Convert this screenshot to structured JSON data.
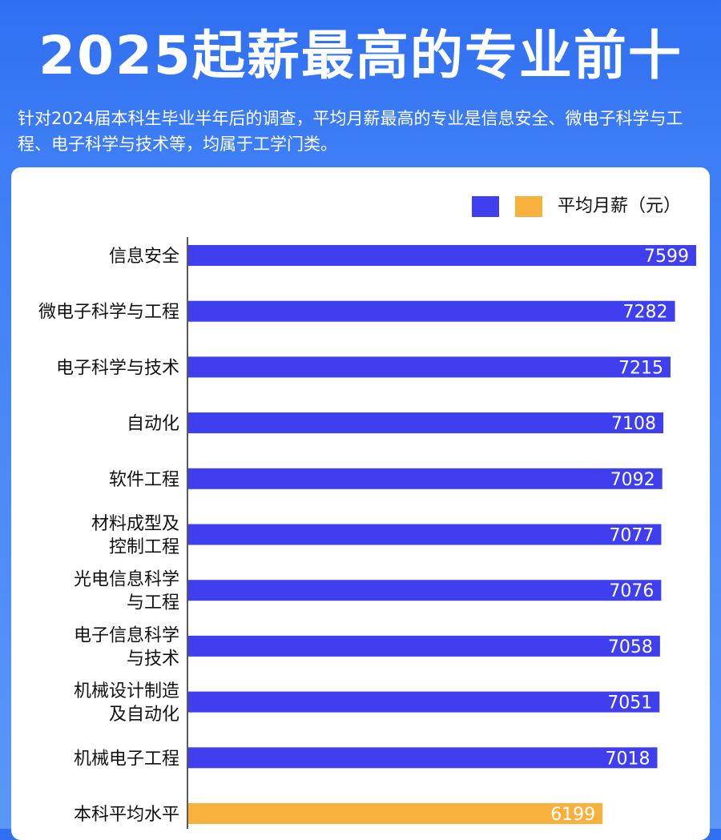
{
  "title": "2025起薪最高的专业前十",
  "subtitle": "针对2024届本科生毕业半年后的调查，平均月薪最高的专业是信息安全、微电子科学与工程、电子科学与技术等，均属于工学门类。",
  "colors": {
    "primary_bar": "#3f3fef",
    "average_bar": "#f8b13d",
    "background": "#3d7df5"
  },
  "chart_data": {
    "type": "bar",
    "orientation": "horizontal",
    "legend": {
      "label": "平均月薪（元）",
      "placement": "top-right"
    },
    "categories": [
      [
        "信息安全"
      ],
      [
        "微电子科学与工程"
      ],
      [
        "电子科学与技术"
      ],
      [
        "自动化"
      ],
      [
        "软件工程"
      ],
      [
        "材料成型及",
        "控制工程"
      ],
      [
        "光电信息科学",
        "与工程"
      ],
      [
        "电子信息科学",
        "与技术"
      ],
      [
        "机械设计制造",
        "及自动化"
      ],
      [
        "机械电子工程"
      ],
      [
        "本科平均水平"
      ]
    ],
    "values": [
      7599,
      7282,
      7215,
      7108,
      7092,
      7077,
      7076,
      7058,
      7051,
      7018,
      6199
    ],
    "highlight_index": 10,
    "xlim": [
      0,
      7599
    ]
  }
}
